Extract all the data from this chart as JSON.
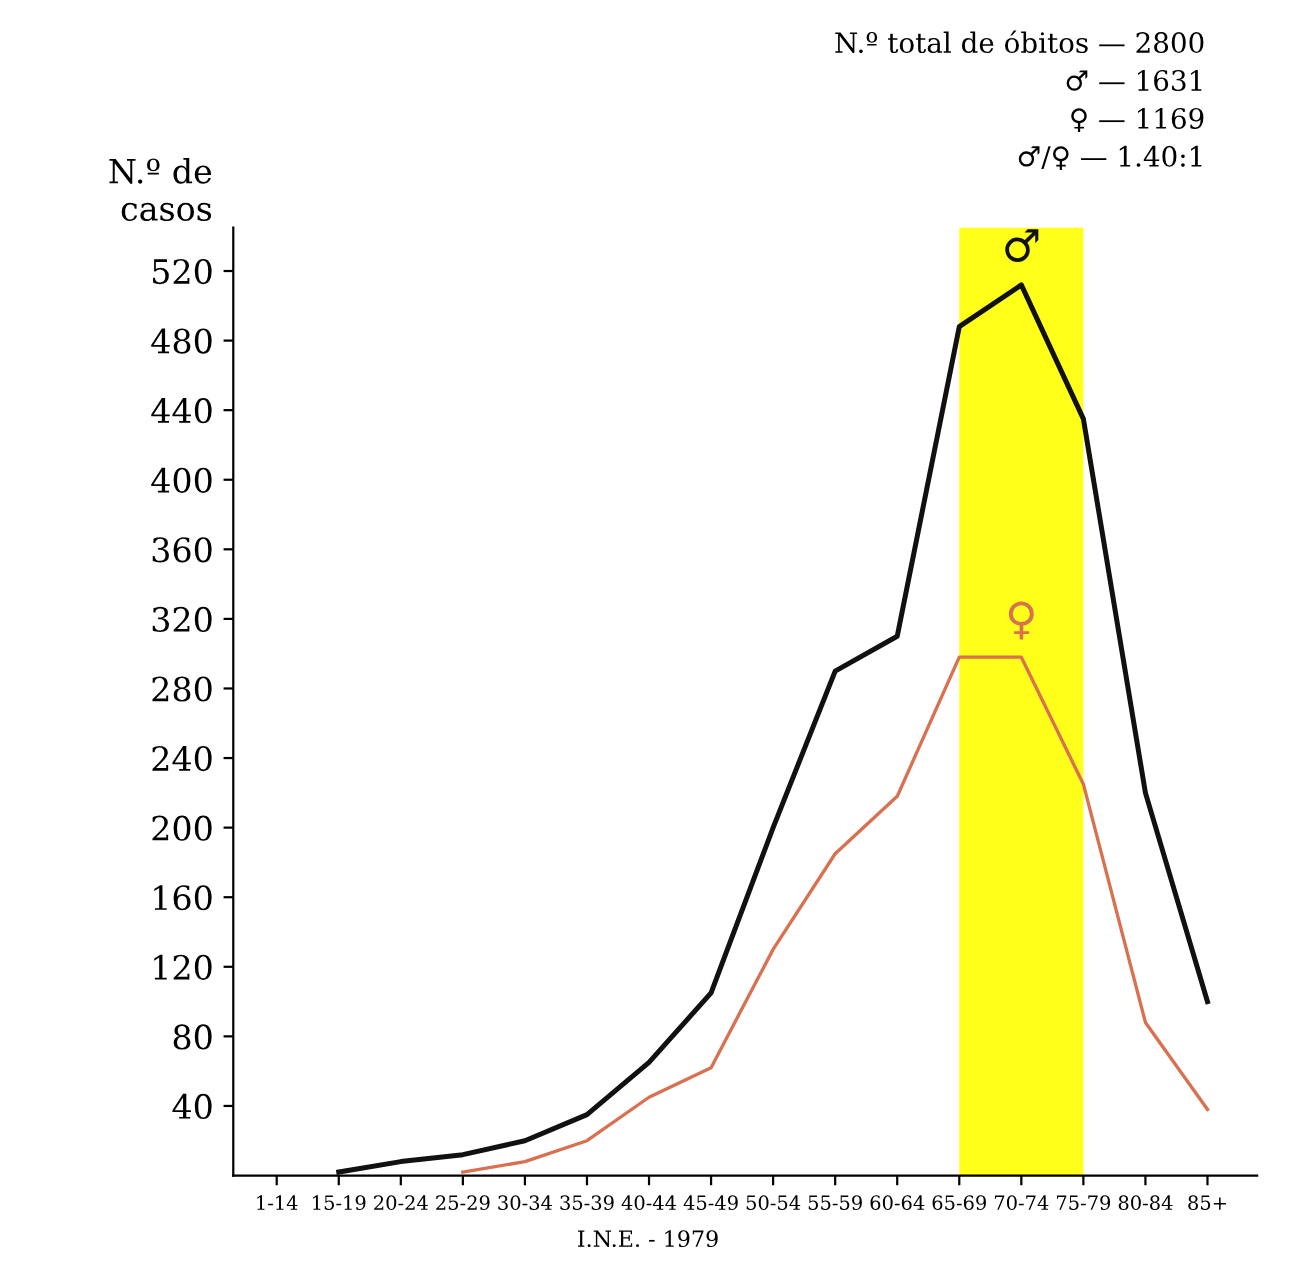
{
  "chart_data": {
    "type": "line",
    "ylabel": "N.º de\ncasos",
    "categories": [
      "1-14",
      "15-19",
      "20-24",
      "25-29",
      "30-34",
      "35-39",
      "40-44",
      "45-49",
      "50-54",
      "55-59",
      "60-64",
      "65-69",
      "70-74",
      "75-79",
      "80-84",
      "85+"
    ],
    "series": [
      {
        "name": "♂",
        "color": "#111111",
        "values": [
          null,
          2,
          8,
          12,
          20,
          35,
          65,
          105,
          200,
          290,
          310,
          488,
          512,
          435,
          220,
          100
        ]
      },
      {
        "name": "♀",
        "color": "#d9704f",
        "values": [
          null,
          null,
          null,
          2,
          8,
          20,
          45,
          62,
          130,
          185,
          218,
          298,
          298,
          225,
          88,
          38
        ]
      }
    ],
    "ylim": [
      0,
      545
    ],
    "yticks": [
      40,
      80,
      120,
      160,
      200,
      240,
      280,
      320,
      360,
      400,
      440,
      480,
      520
    ],
    "bands": [
      {
        "axis": "x",
        "from": "65-69",
        "to": "75-79",
        "color": "#ffff1a"
      }
    ],
    "grid": false,
    "legend": false,
    "marker": "none",
    "line_style": "solid",
    "annotations": [
      "N.º total de óbitos — 2800",
      "♂ — 1631",
      "♀ — 1169",
      "♂/♀ — 1.40:1",
      "I.N.E. - 1979"
    ]
  }
}
